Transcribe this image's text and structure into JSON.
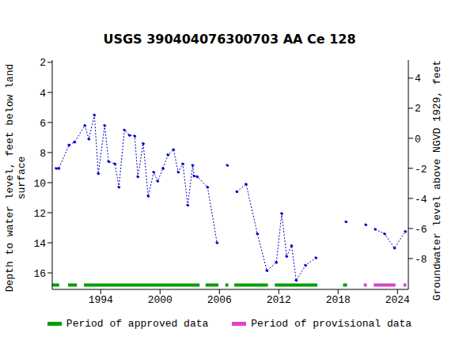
{
  "chart_data": {
    "type": "line",
    "title": "USGS 390404076300703 AA Ce 128",
    "y_label": "Depth to water level, feet below land surface",
    "y2_label": "Groundwater level above NGVD 1929, feet",
    "x": [
      1989.5,
      1989.76,
      1990.8,
      1991.36,
      1992.4,
      1992.8,
      1993.36,
      1993.76,
      1994.4,
      1994.8,
      1995.44,
      1995.84,
      1996.4,
      1996.9,
      1997.44,
      1997.76,
      1998.3,
      1998.8,
      1999.36,
      1999.76,
      2000.3,
      2000.8,
      2001.36,
      2001.84,
      2002.3,
      2002.8,
      2003.3,
      2003.44,
      2003.76,
      2004.8,
      2005.76,
      2006.3,
      2006.8,
      2007.3,
      2007.76,
      2008.7,
      2009.84,
      2010.8,
      2011.76,
      2012.3,
      2012.8,
      2013.3,
      2013.76,
      2014.7,
      2015.76,
      2017.3,
      2018.8,
      2019.8,
      2020.8,
      2021.3,
      2021.76,
      2022.7,
      2023.7,
      2024.8
    ],
    "series": [
      {
        "color": "#0000cc",
        "marker": "dot",
        "line_style": "dotted",
        "values": [
          9.05,
          9.05,
          7.5,
          7.3,
          6.2,
          7.1,
          5.5,
          9.4,
          6.2,
          8.6,
          8.75,
          10.3,
          6.5,
          6.85,
          6.9,
          9.6,
          7.4,
          10.9,
          9.3,
          9.9,
          9.05,
          8.15,
          7.8,
          9.3,
          8.75,
          11.5,
          8.85,
          9.55,
          9.6,
          10.3,
          14.0,
          null,
          8.85,
          null,
          10.6,
          10.1,
          13.4,
          15.85,
          15.3,
          12.05,
          14.9,
          14.2,
          16.5,
          15.5,
          15.0,
          null,
          12.6,
          null,
          12.8,
          null,
          13.1,
          13.4,
          14.35,
          13.25
        ]
      }
    ],
    "xlim": [
      1989.1,
      2025.1
    ],
    "xticks": [
      1994,
      2000,
      2006,
      2012,
      2018,
      2024
    ],
    "ylim": [
      17.1,
      1.85
    ],
    "yticks": [
      2,
      4,
      6,
      8,
      10,
      12,
      14,
      16
    ],
    "y2lim": [
      -10.05,
      5.2
    ],
    "y2ticks": [
      4,
      2,
      0,
      -2,
      -4,
      -6,
      -8
    ],
    "periods": [
      {
        "label": "Period of approved data",
        "color": "#00a000",
        "ranges": [
          [
            1989.1,
            1989.8
          ],
          [
            1990.7,
            1991.6
          ],
          [
            1992.3,
            2004.0
          ],
          [
            2004.6,
            2005.9
          ],
          [
            2006.6,
            2006.9
          ],
          [
            2007.5,
            2010.9
          ],
          [
            2011.6,
            2015.9
          ],
          [
            2018.5,
            2018.9
          ]
        ]
      },
      {
        "label": "Period of provisional data",
        "color": "#dd44cc",
        "ranges": [
          [
            2020.6,
            2020.9
          ],
          [
            2021.6,
            2023.8
          ],
          [
            2024.6,
            2024.9
          ]
        ]
      }
    ]
  }
}
